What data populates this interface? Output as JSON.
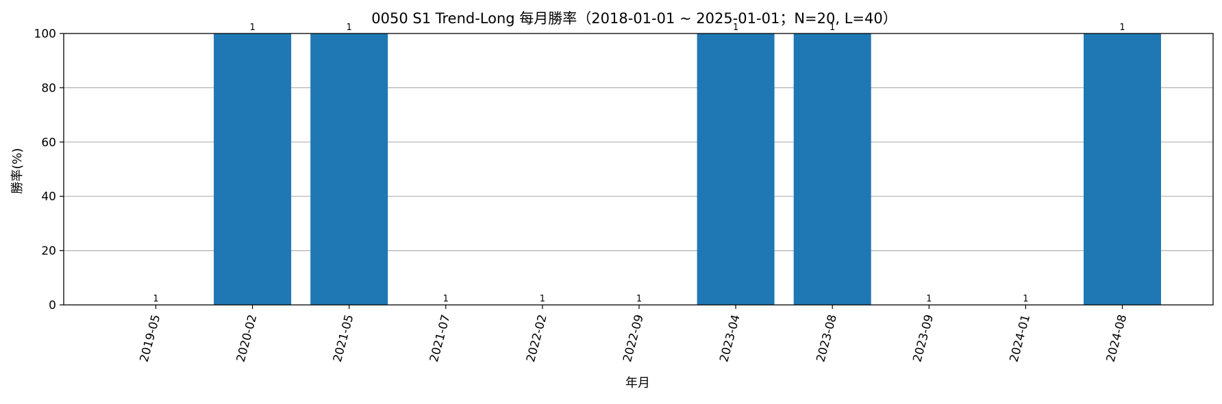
{
  "chart_data": {
    "type": "bar",
    "title": "0050 S1 Trend-Long 每月勝率（2018-01-01 ~ 2025-01-01；N=20, L=40）",
    "xlabel": "年月",
    "ylabel": "勝率(%)",
    "ylim": [
      0,
      100
    ],
    "yticks": [
      0,
      20,
      40,
      60,
      80,
      100
    ],
    "grid": "y",
    "categories": [
      "2019-05",
      "2020-02",
      "2021-05",
      "2021-07",
      "2022-02",
      "2022-09",
      "2023-04",
      "2023-08",
      "2023-09",
      "2024-01",
      "2024-08"
    ],
    "values": [
      0,
      100,
      100,
      0,
      0,
      0,
      100,
      100,
      0,
      0,
      100
    ],
    "bar_labels": [
      "1",
      "1",
      "1",
      "1",
      "1",
      "1",
      "1",
      "1",
      "1",
      "1",
      "1"
    ],
    "bar_color": "#1f77b4",
    "grid_color": "#b0b0b0"
  }
}
